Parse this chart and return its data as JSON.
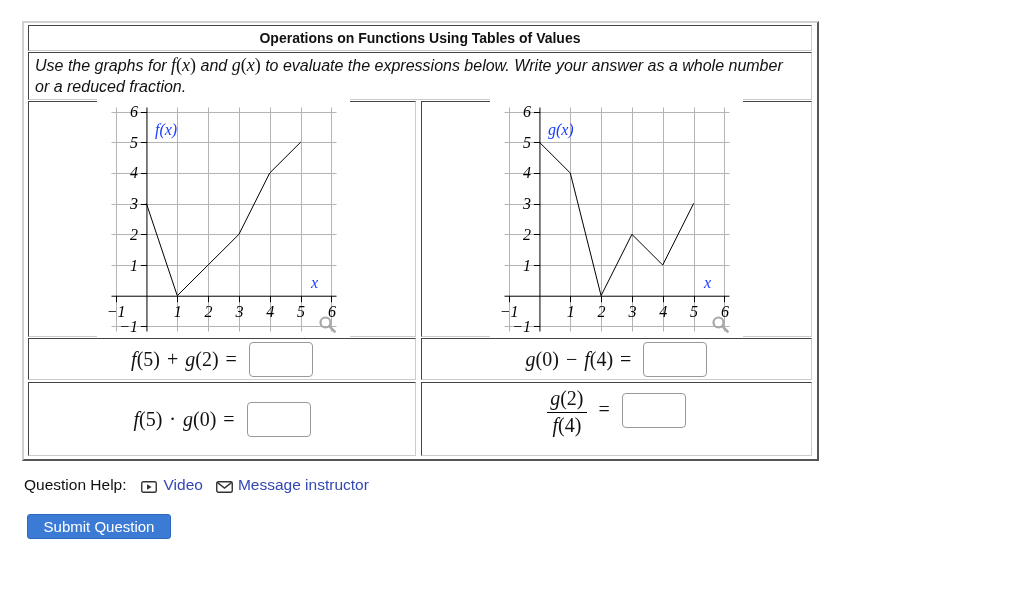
{
  "chart_data": [
    {
      "type": "other",
      "title": "Operations on Functions Using Tables of Values",
      "subtitle": "Use the graphs for f(x) and g(x) to evaluate the expressions below. Write your answer as a whole number or a reduced fraction."
    },
    {
      "type": "line",
      "x": [
        0,
        1,
        2,
        3,
        4,
        5
      ],
      "values": [
        3,
        0,
        1,
        2,
        4,
        5
      ],
      "color": "#000000",
      "xlabel": "x",
      "ylabel": "f(x)",
      "xlim": [
        -1.15,
        6.15
      ],
      "ylim": [
        -1.15,
        6.15
      ],
      "xticks": [
        -1,
        1,
        2,
        3,
        4,
        5,
        6
      ],
      "yticks": [
        -1,
        1,
        2,
        3,
        4,
        5,
        6
      ],
      "grid": true
    },
    {
      "type": "line",
      "x": [
        0,
        1,
        2,
        3,
        4,
        5
      ],
      "values": [
        5,
        4,
        0,
        2,
        1,
        3
      ],
      "color": "#000000",
      "xlabel": "x",
      "ylabel": "g(x)",
      "xlim": [
        -1.15,
        6.15
      ],
      "ylim": [
        -1.15,
        6.15
      ],
      "xticks": [
        -1,
        1,
        2,
        3,
        4,
        5,
        6
      ],
      "yticks": [
        -1,
        1,
        2,
        3,
        4,
        5,
        6
      ],
      "grid": true
    },
    {
      "type": "other",
      "annotations": [
        "f(5) + g(2) =",
        "g(0) − f(4) =",
        "f(5) · g(0) =",
        "g(2)",
        "f(4)",
        "=",
        "Question Help:",
        "Video",
        "Message instructor",
        "Submit Question"
      ]
    }
  ]
}
